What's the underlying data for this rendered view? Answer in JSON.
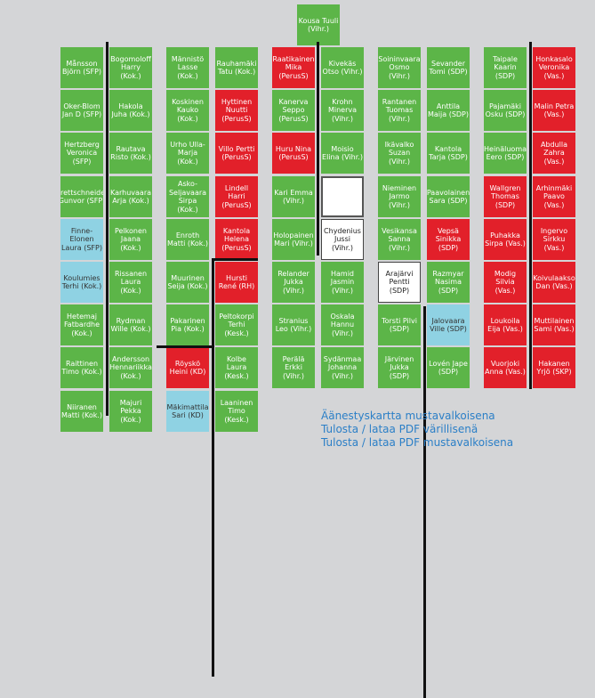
{
  "colors": {
    "green": "#5cb548",
    "red": "#e2202a",
    "cyan": "#8fd2e3",
    "link": "#2b7fc7",
    "background": "#d4d5d7"
  },
  "speaker_seat": {
    "name": "Kousa Tuuli",
    "party": "(Vihr.)",
    "color": "green"
  },
  "columns": [
    [
      {
        "name": "Månsson Björn",
        "party": "(SFP)",
        "color": "green"
      },
      {
        "name": "Oker-Blom Jan D",
        "party": "(SFP)",
        "color": "green"
      },
      {
        "name": "Hertzberg Veronica",
        "party": "(SFP)",
        "color": "green"
      },
      {
        "name": "Brettschneider Gunvor",
        "party": "(SFP)",
        "color": "green"
      },
      {
        "name": "Finne-Elonen Laura",
        "party": "(SFP)",
        "color": "cyan"
      },
      {
        "name": "Koulumies Terhi",
        "party": "(Kok.)",
        "color": "cyan"
      },
      {
        "name": "Hetemaj Fatbardhe",
        "party": "(Kok.)",
        "color": "green"
      },
      {
        "name": "Raittinen Timo",
        "party": "(Kok.)",
        "color": "green"
      },
      {
        "name": "Niiranen Matti",
        "party": "(Kok.)",
        "color": "green"
      }
    ],
    [
      {
        "name": "Bogomoloff Harry",
        "party": "(Kok.)",
        "color": "green"
      },
      {
        "name": "Hakola Juha",
        "party": "(Kok.)",
        "color": "green"
      },
      {
        "name": "Rautava Risto",
        "party": "(Kok.)",
        "color": "green"
      },
      {
        "name": "Karhuvaara Arja",
        "party": "(Kok.)",
        "color": "green"
      },
      {
        "name": "Pelkonen Jaana",
        "party": "(Kok.)",
        "color": "green"
      },
      {
        "name": "Rissanen Laura",
        "party": "(Kok.)",
        "color": "green"
      },
      {
        "name": "Rydman Wille",
        "party": "(Kok.)",
        "color": "green"
      },
      {
        "name": "Andersson Hennariikka",
        "party": "(Kok.)",
        "color": "green"
      },
      {
        "name": "Majuri Pekka",
        "party": "(Kok.)",
        "color": "green"
      }
    ],
    [
      {
        "name": "Männistö Lasse",
        "party": "(Kok.)",
        "color": "green"
      },
      {
        "name": "Koskinen Kauko",
        "party": "(Kok.)",
        "color": "green"
      },
      {
        "name": "Urho Ulla-Marja",
        "party": "(Kok.)",
        "color": "green"
      },
      {
        "name": "Asko-Seljavaara Sirpa",
        "party": "(Kok.)",
        "color": "green"
      },
      {
        "name": "Enroth Matti",
        "party": "(Kok.)",
        "color": "green"
      },
      {
        "name": "Muurinen Seija",
        "party": "(Kok.)",
        "color": "green"
      },
      {
        "name": "Pakarinen Pia",
        "party": "(Kok.)",
        "color": "green"
      },
      {
        "name": "Röyskö Heini",
        "party": "(KD)",
        "color": "red"
      },
      {
        "name": "Mäkimattila Sari",
        "party": "(KD)",
        "color": "cyan"
      }
    ],
    [
      {
        "name": "Rauhamäki Tatu",
        "party": "(Kok.)",
        "color": "green"
      },
      {
        "name": "Hyttinen Nuutti",
        "party": "(PerusS)",
        "color": "red"
      },
      {
        "name": "Villo Pertti",
        "party": "(PerusS)",
        "color": "red"
      },
      {
        "name": "Lindell Harri",
        "party": "(PerusS)",
        "color": "red"
      },
      {
        "name": "Kantola Helena",
        "party": "(PerusS)",
        "color": "red"
      },
      {
        "name": "Hursti René",
        "party": "(RH)",
        "color": "red"
      },
      {
        "name": "Peltokorpi Terhi",
        "party": "(Kesk.)",
        "color": "green"
      },
      {
        "name": "Kolbe Laura",
        "party": "(Kesk.)",
        "color": "green"
      },
      {
        "name": "Laaninen Timo",
        "party": "(Kesk.)",
        "color": "green"
      }
    ],
    [
      {
        "name": "Raatikainen Mika",
        "party": "(PerusS)",
        "color": "red"
      },
      {
        "name": "Kanerva Seppo",
        "party": "(PerusS)",
        "color": "green"
      },
      {
        "name": "Huru Nina",
        "party": "(PerusS)",
        "color": "red"
      },
      {
        "name": "Kari Emma",
        "party": "(Vihr.)",
        "color": "green"
      },
      {
        "name": "Holopainen Mari",
        "party": "(Vihr.)",
        "color": "green"
      },
      {
        "name": "Relander Jukka",
        "party": "(Vihr.)",
        "color": "green"
      },
      {
        "name": "Stranius Leo",
        "party": "(Vihr.)",
        "color": "green"
      },
      {
        "name": "Perälä Erkki",
        "party": "(Vihr.)",
        "color": "green"
      }
    ],
    [
      {
        "name": "Kivekäs Otso",
        "party": "(Vihr.)",
        "color": "green"
      },
      {
        "name": "Krohn Minerva",
        "party": "(Vihr.)",
        "color": "green"
      },
      {
        "name": "Moisio Elina",
        "party": "(Vihr.)",
        "color": "green"
      },
      {
        "name": "",
        "party": "",
        "color": "empty"
      },
      {
        "name": "Chydenius Jussi",
        "party": "(Vihr.)",
        "color": "white"
      },
      {
        "name": "Hamid Jasmin",
        "party": "(Vihr.)",
        "color": "green"
      },
      {
        "name": "Oskala Hannu",
        "party": "(Vihr.)",
        "color": "green"
      },
      {
        "name": "Sydänmaa Johanna",
        "party": "(Vihr.)",
        "color": "green"
      }
    ],
    [
      {
        "name": "Soininvaara Osmo",
        "party": "(Vihr.)",
        "color": "green"
      },
      {
        "name": "Rantanen Tuomas",
        "party": "(Vihr.)",
        "color": "green"
      },
      {
        "name": "Ikävalko Suzan",
        "party": "(Vihr.)",
        "color": "green"
      },
      {
        "name": "Nieminen Jarmo",
        "party": "(Vihr.)",
        "color": "green"
      },
      {
        "name": "Vesikansa Sanna",
        "party": "(Vihr.)",
        "color": "green"
      },
      {
        "name": "Arajärvi Pentti",
        "party": "(SDP)",
        "color": "white"
      },
      {
        "name": "Torsti Pilvi",
        "party": "(SDP)",
        "color": "green"
      },
      {
        "name": "Järvinen Jukka",
        "party": "(SDP)",
        "color": "green"
      }
    ],
    [
      {
        "name": "Sevander Tomi",
        "party": "(SDP)",
        "color": "green"
      },
      {
        "name": "Anttila Maija",
        "party": "(SDP)",
        "color": "green"
      },
      {
        "name": "Kantola Tarja",
        "party": "(SDP)",
        "color": "green"
      },
      {
        "name": "Paavolainen Sara",
        "party": "(SDP)",
        "color": "green"
      },
      {
        "name": "Vepsä Sinikka",
        "party": "(SDP)",
        "color": "red"
      },
      {
        "name": "Razmyar Nasima",
        "party": "(SDP)",
        "color": "green"
      },
      {
        "name": "Jalovaara Ville",
        "party": "(SDP)",
        "color": "cyan"
      },
      {
        "name": "Lovén Jape",
        "party": "(SDP)",
        "color": "green"
      }
    ],
    [
      {
        "name": "Taipale Kaarin",
        "party": "(SDP)",
        "color": "green"
      },
      {
        "name": "Pajamäki Osku",
        "party": "(SDP)",
        "color": "green"
      },
      {
        "name": "Heinäluoma Eero",
        "party": "(SDP)",
        "color": "green"
      },
      {
        "name": "Wallgren Thomas",
        "party": "(SDP)",
        "color": "red"
      },
      {
        "name": "Puhakka Sirpa",
        "party": "(Vas.)",
        "color": "red"
      },
      {
        "name": "Modig Silvia",
        "party": "(Vas.)",
        "color": "red"
      },
      {
        "name": "Loukoila Eija",
        "party": "(Vas.)",
        "color": "red"
      },
      {
        "name": "Vuorjoki Anna",
        "party": "(Vas.)",
        "color": "red"
      }
    ],
    [
      {
        "name": "Honkasalo Veronika",
        "party": "(Vas.)",
        "color": "red"
      },
      {
        "name": "Malin Petra",
        "party": "(Vas.)",
        "color": "red"
      },
      {
        "name": "Abdulla Zahra",
        "party": "(Vas.)",
        "color": "red"
      },
      {
        "name": "Arhinmäki Paavo",
        "party": "(Vas.)",
        "color": "red"
      },
      {
        "name": "Ingervo Sirkku",
        "party": "(Vas.)",
        "color": "red"
      },
      {
        "name": "Koivulaakso Dan",
        "party": "(Vas.)",
        "color": "red"
      },
      {
        "name": "Muttilainen Sami",
        "party": "(Vas.)",
        "color": "red"
      },
      {
        "name": "Hakanen Yrjö",
        "party": "(SKP)",
        "color": "red"
      }
    ]
  ],
  "links": [
    "Äänestyskartta mustavalkoisena",
    "Tulosta / lataa PDF värillisenä",
    "Tulosta / lataa PDF mustavalkoisena"
  ]
}
